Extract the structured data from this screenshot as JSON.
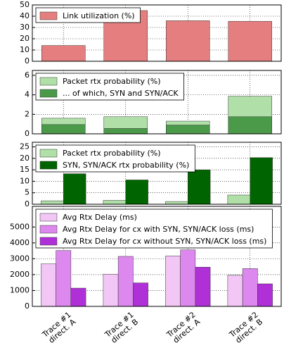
{
  "chart_data": [
    {
      "type": "bar",
      "mode": "single",
      "ylim": [
        0,
        50
      ],
      "yticks": [
        0,
        10,
        20,
        30,
        40,
        50
      ],
      "grid": true,
      "legend": "upper left",
      "series": [
        {
          "name": "Link utilization (%)",
          "color": "#e57f7f",
          "values": [
            14,
            45,
            36,
            35.5
          ]
        }
      ]
    },
    {
      "type": "bar",
      "mode": "overlay",
      "ylim": [
        0,
        6.5
      ],
      "yticks": [
        0,
        2,
        4,
        6
      ],
      "grid": true,
      "legend": "upper left",
      "series": [
        {
          "name": "Packet rtx probability (%)",
          "color": "#b0e0a8",
          "values": [
            1.6,
            1.75,
            1.3,
            3.85
          ]
        },
        {
          "name": "... of which, SYN and SYN/ACK",
          "color": "#4a9a4a",
          "values": [
            0.95,
            0.55,
            0.9,
            1.75
          ]
        }
      ]
    },
    {
      "type": "bar",
      "mode": "grouped",
      "ylim": [
        0,
        27
      ],
      "yticks": [
        0,
        5,
        10,
        15,
        20,
        25
      ],
      "grid": true,
      "legend": "upper left",
      "series": [
        {
          "name": "Packet rtx probability (%)",
          "color": "#b0e0a8",
          "values": [
            1.5,
            1.7,
            1.2,
            4.0
          ]
        },
        {
          "name": "SYN, SYN/ACK rtx probability (%)",
          "color": "#006400",
          "values": [
            13.3,
            10.6,
            15,
            20.3
          ]
        }
      ]
    },
    {
      "type": "bar",
      "mode": "grouped",
      "ylim": [
        0,
        6300
      ],
      "yticks": [
        0,
        1000,
        2000,
        3000,
        4000,
        5000
      ],
      "grid": true,
      "legend": "upper left",
      "categories": [
        "Trace #1\ndirect. A",
        "Trace #1\ndirect. B",
        "Trace #2\ndirect. A",
        "Trace #2\ndirect. B"
      ],
      "series": [
        {
          "name": "Avg Rtx Delay (ms)",
          "color": "#f2c6f5",
          "values": [
            2680,
            2030,
            3180,
            1960
          ]
        },
        {
          "name": "Avg Rtx Delay for cx with SYN, SYN/ACK loss (ms)",
          "color": "#dd88ee",
          "values": [
            3520,
            3150,
            3560,
            2380
          ]
        },
        {
          "name": "Avg Rtx Delay for cx without SYN, SYN/ACK loss (ms)",
          "color": "#b030d8",
          "values": [
            1150,
            1480,
            2470,
            1420
          ]
        }
      ]
    }
  ]
}
